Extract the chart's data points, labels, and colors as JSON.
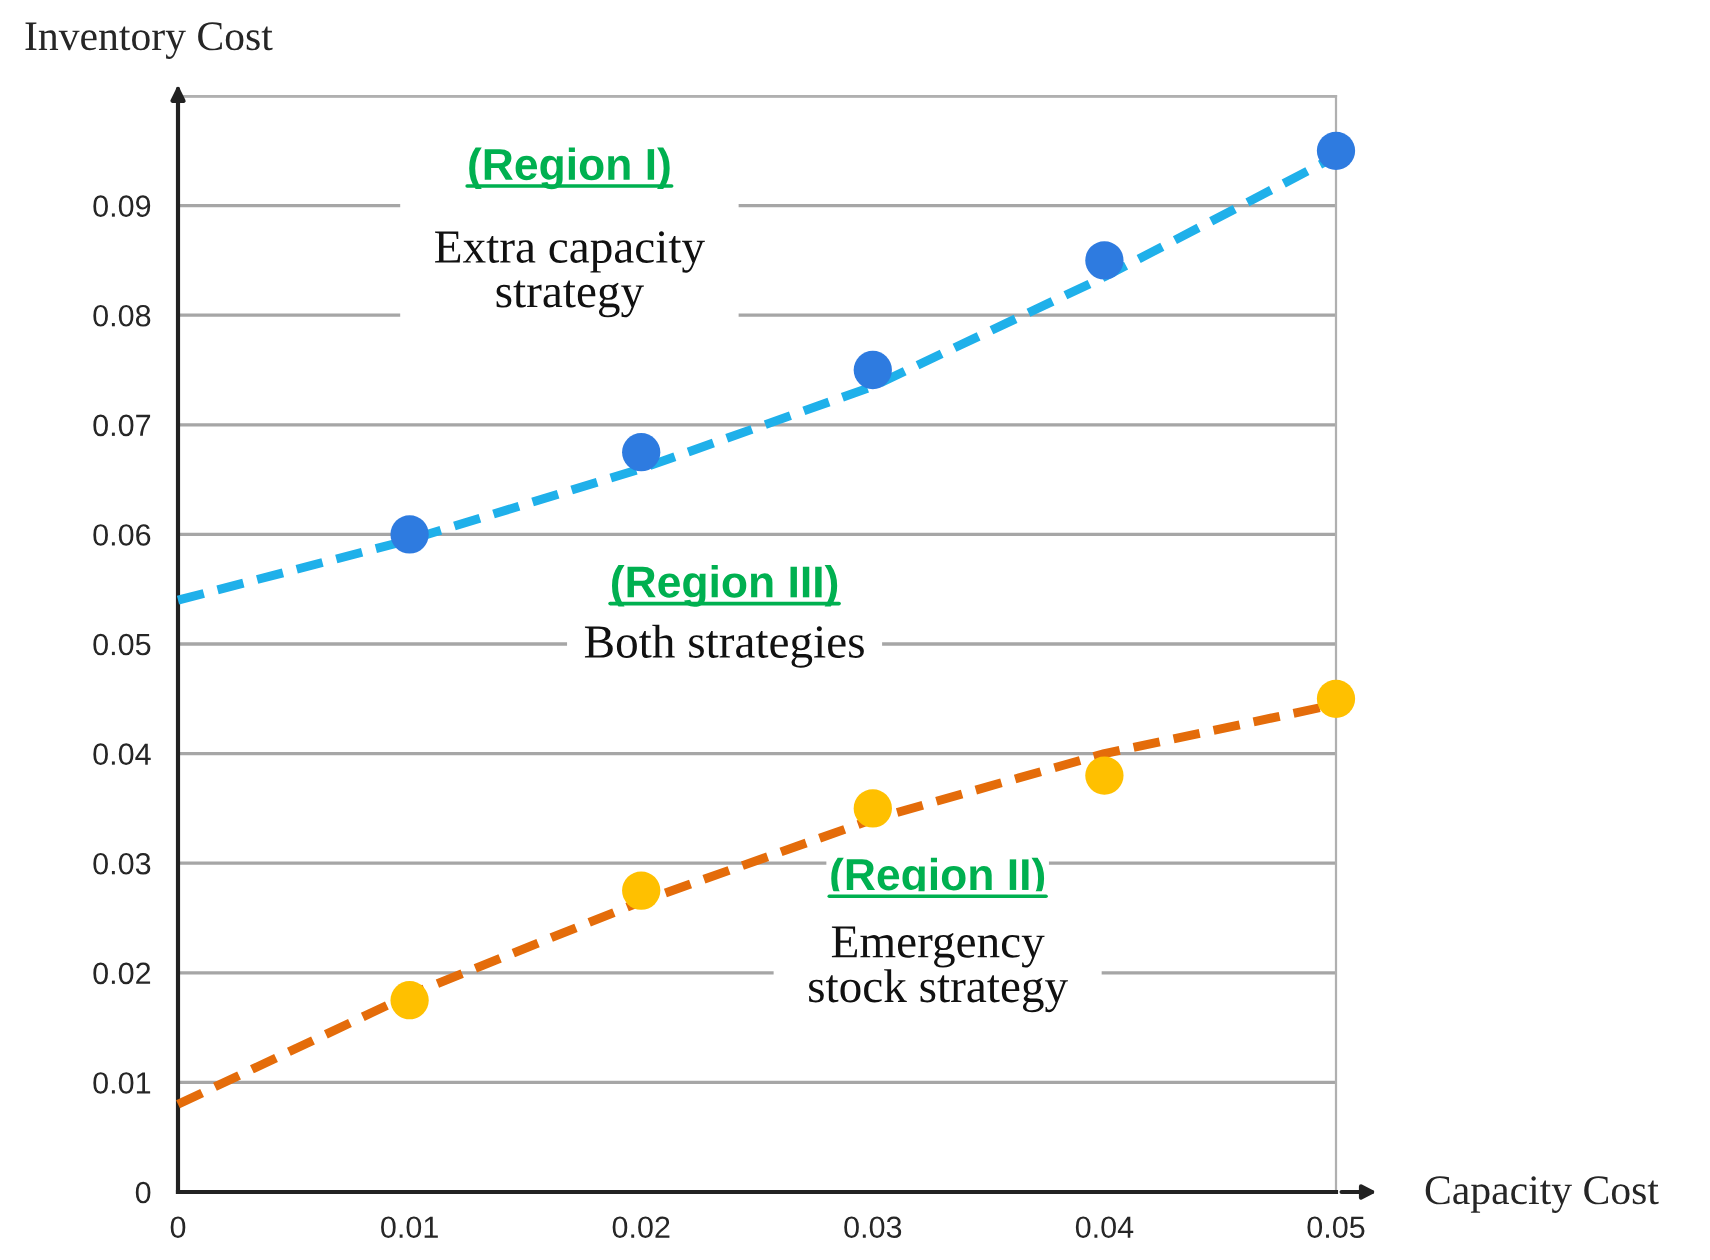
{
  "chart_data": {
    "type": "scatter",
    "xlabel": "Capacity Cost",
    "ylabel": "Inventory Cost",
    "x": [
      0.01,
      0.02,
      0.03,
      0.04,
      0.05
    ],
    "series": [
      {
        "type": "line",
        "color": "#1fb0ea",
        "line_style": "dashed",
        "marker": "none",
        "x": [
          0,
          0.01,
          0.02,
          0.03,
          0.04,
          0.05
        ],
        "values": [
          0.054,
          0.0595,
          0.066,
          0.0735,
          0.0835,
          0.0945
        ]
      },
      {
        "type": "line",
        "color": "#e46c0a",
        "line_style": "dashed",
        "marker": "none",
        "x": [
          0,
          0.01,
          0.02,
          0.03,
          0.04,
          0.05
        ],
        "values": [
          0.008,
          0.018,
          0.0265,
          0.034,
          0.04,
          0.0445
        ]
      },
      {
        "color": "#2e7be0",
        "marker": "circle",
        "values": [
          0.06,
          0.0675,
          0.075,
          0.085,
          0.095
        ]
      },
      {
        "color": "#ffc000",
        "marker": "circle",
        "values": [
          0.0175,
          0.0275,
          0.035,
          0.038,
          0.045
        ]
      }
    ],
    "xlim": [
      0,
      0.05
    ],
    "ylim": [
      0,
      0.1
    ],
    "xticks": [
      0,
      0.01,
      0.02,
      0.03,
      0.04,
      0.05
    ],
    "yticks": [
      0,
      0.01,
      0.02,
      0.03,
      0.04,
      0.05,
      0.06,
      0.07,
      0.08,
      0.09,
      {
        "value": 0.1,
        "label": null
      }
    ],
    "grid": "y",
    "legend": false,
    "annotations": [
      "(Region I)",
      "Extra capacity\nstrategy",
      "(Region III)",
      "Both strategies",
      "(Region II)",
      "Emergency\nstock strategy"
    ]
  }
}
